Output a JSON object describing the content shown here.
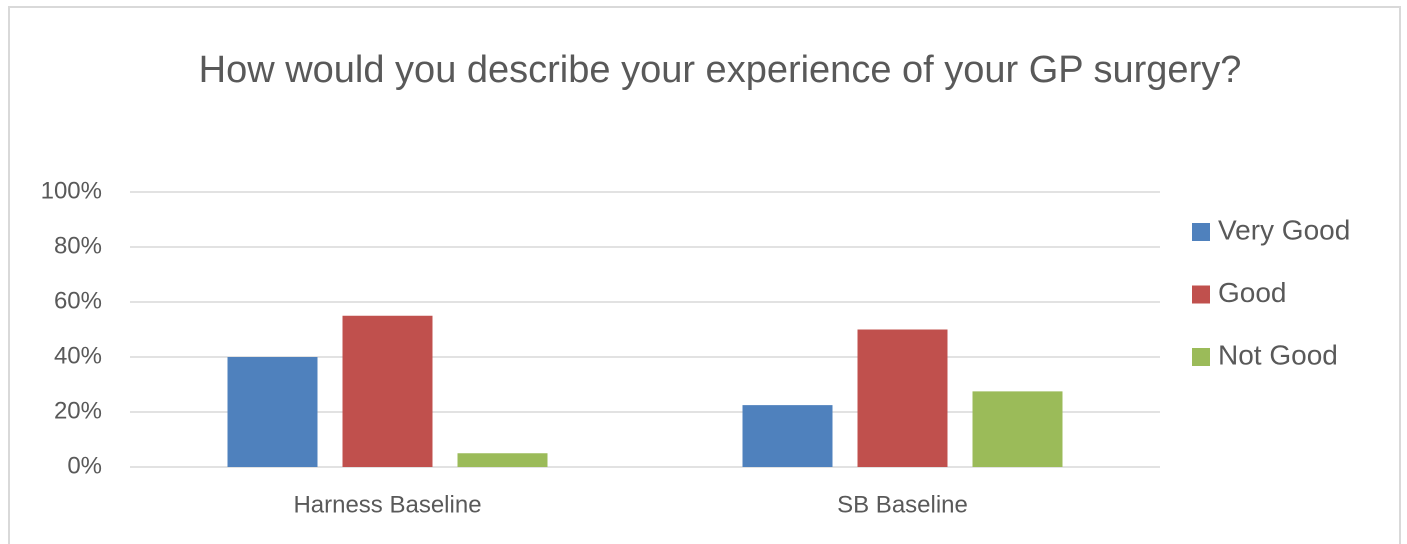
{
  "chart_data": {
    "type": "bar",
    "title": "How would you describe your experience of your GP surgery?",
    "categories": [
      "Harness Baseline",
      "SB Baseline"
    ],
    "series": [
      {
        "name": "Very Good",
        "color": "#4f81bd",
        "values": [
          40,
          22.5
        ]
      },
      {
        "name": "Good",
        "color": "#c0504d",
        "values": [
          55,
          50
        ]
      },
      {
        "name": "Not Good",
        "color": "#9bbb59",
        "values": [
          5,
          27.5
        ]
      }
    ],
    "ylim": [
      0,
      100
    ],
    "yticks": [
      {
        "value": 0,
        "label": "0%"
      },
      {
        "value": 20,
        "label": "20%"
      },
      {
        "value": 40,
        "label": "40%"
      },
      {
        "value": 60,
        "label": "60%"
      },
      {
        "value": 80,
        "label": "80%"
      },
      {
        "value": 100,
        "label": "100%"
      }
    ],
    "grid": true,
    "legend": "right"
  }
}
